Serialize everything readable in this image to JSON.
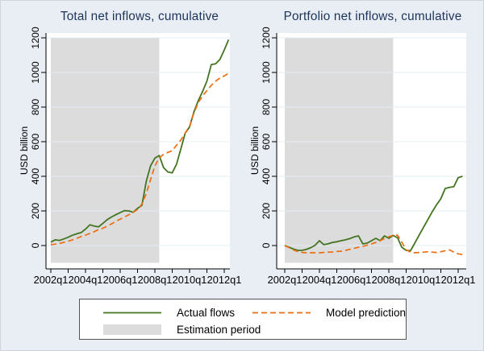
{
  "figure": {
    "background": "#e9eef4",
    "panel_bg": "#ffffff",
    "grid_color": "#e3ecf3",
    "shade_color": "#dcdcdc",
    "axis_color": "#000000",
    "title_color": "#1d3358",
    "actual_color": "#437420",
    "model_color": "#ed6e12"
  },
  "legend": {
    "items": [
      {
        "label": "Actual flows",
        "swatch": "green-solid-line"
      },
      {
        "label": "Estimation period",
        "swatch": "gray-area"
      },
      {
        "label": "Model prediction",
        "swatch": "orange-dashed-line"
      }
    ]
  },
  "chart_data": [
    {
      "type": "line",
      "title": "Total net inflows, cumulative",
      "ylabel": "USD billion",
      "x_unit": "quarter",
      "x_start": "2002q1",
      "x_end": "2012q2",
      "x_tick_labels": [
        "2002q1",
        "2004q1",
        "2006q1",
        "2008q1",
        "2010q1",
        "2012q1"
      ],
      "y_ticks": [
        0,
        200,
        400,
        600,
        800,
        1000,
        1200
      ],
      "ylim": [
        -140,
        1230
      ],
      "grid": true,
      "estimation_period": {
        "start": "2002q1",
        "end": "2008q2"
      },
      "series": [
        {
          "name": "Actual flows",
          "line_style": "solid",
          "color_key": "actual",
          "values": [
            20,
            33,
            30,
            38,
            48,
            60,
            68,
            75,
            95,
            120,
            112,
            108,
            128,
            150,
            165,
            178,
            190,
            202,
            200,
            192,
            215,
            232,
            370,
            460,
            505,
            520,
            450,
            425,
            420,
            470,
            560,
            650,
            685,
            772,
            837,
            890,
            950,
            1045,
            1050,
            1075,
            1130,
            1190
          ]
        },
        {
          "name": "Model prediction",
          "line_style": "dashed",
          "color_key": "model",
          "values": [
            5,
            8,
            12,
            18,
            25,
            33,
            42,
            52,
            60,
            70,
            80,
            92,
            100,
            112,
            125,
            140,
            152,
            165,
            178,
            192,
            208,
            240,
            300,
            380,
            460,
            505,
            528,
            538,
            548,
            580,
            610,
            650,
            690,
            765,
            825,
            865,
            895,
            925,
            950,
            968,
            980,
            995
          ]
        }
      ]
    },
    {
      "type": "line",
      "title": "Portfolio net inflows, cumulative",
      "ylabel": "USD billion",
      "x_unit": "quarter",
      "x_start": "2002q1",
      "x_end": "2012q2",
      "x_tick_labels": [
        "2002q1",
        "2004q1",
        "2006q1",
        "2008q1",
        "2010q1",
        "2012q1"
      ],
      "y_ticks": [
        0,
        200,
        400,
        600,
        800,
        1000,
        1200
      ],
      "ylim": [
        -140,
        1230
      ],
      "grid": true,
      "estimation_period": {
        "start": "2002q1",
        "end": "2008q2"
      },
      "series": [
        {
          "name": "Actual flows",
          "line_style": "solid",
          "color_key": "actual",
          "values": [
            0,
            -10,
            -20,
            -28,
            -28,
            -22,
            -12,
            2,
            28,
            5,
            10,
            18,
            22,
            28,
            33,
            40,
            50,
            56,
            10,
            14,
            28,
            42,
            28,
            56,
            42,
            58,
            45,
            -10,
            -28,
            -30,
            15,
            60,
            105,
            150,
            195,
            235,
            270,
            330,
            336,
            340,
            392,
            400
          ]
        },
        {
          "name": "Model prediction",
          "line_style": "dashed",
          "color_key": "model",
          "values": [
            0,
            -12,
            -25,
            -35,
            -40,
            -42,
            -42,
            -42,
            -42,
            -40,
            -38,
            -37,
            -34,
            -33,
            -28,
            -22,
            -16,
            -10,
            -5,
            2,
            9,
            18,
            28,
            40,
            51,
            58,
            60,
            20,
            -25,
            -38,
            -42,
            -40,
            -38,
            -36,
            -38,
            -40,
            -36,
            -30,
            -25,
            -38,
            -48,
            -52
          ]
        }
      ]
    }
  ]
}
